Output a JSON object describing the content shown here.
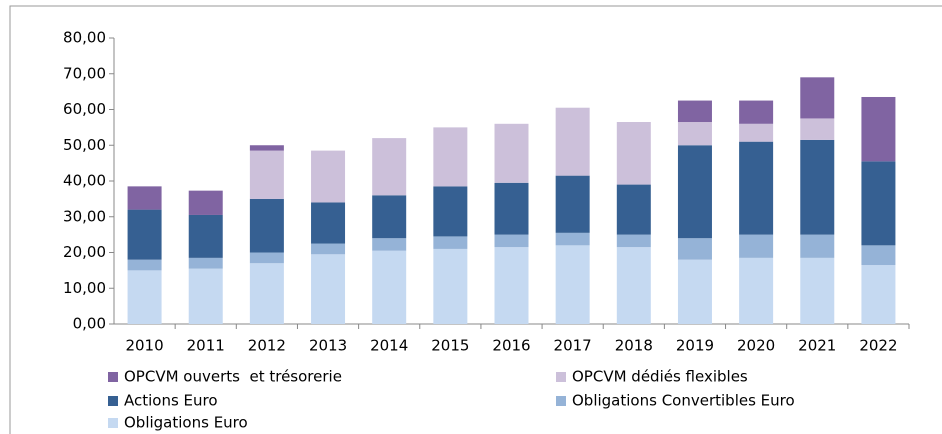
{
  "chart_data": {
    "type": "stacked_bar",
    "categories": [
      "2010",
      "2011",
      "2012",
      "2013",
      "2014",
      "2015",
      "2016",
      "2017",
      "2018",
      "2019",
      "2020",
      "2021",
      "2022"
    ],
    "series": [
      {
        "name": "Obligations Euro",
        "color": "#c5d9f1",
        "values": [
          15,
          15.5,
          17,
          19.5,
          20.5,
          21,
          21.5,
          22,
          21.5,
          18,
          18.5,
          18.5,
          16.5
        ]
      },
      {
        "name": "Obligations Convertibles Euro",
        "color": "#95b3d7",
        "values": [
          3,
          3,
          3,
          3,
          3.5,
          3.5,
          3.5,
          3.5,
          3.5,
          6,
          6.5,
          6.5,
          5.5
        ]
      },
      {
        "name": "Actions Euro",
        "color": "#366092",
        "values": [
          14,
          12,
          15,
          11.5,
          12,
          14,
          14.5,
          16,
          14,
          26,
          26,
          26.5,
          23.5
        ]
      },
      {
        "name": "OPCVM dédiés flexibles",
        "color": "#ccc0da",
        "values": [
          0,
          0,
          13.5,
          14.5,
          16,
          16.5,
          16.5,
          19,
          17.5,
          6.5,
          5,
          6,
          0
        ]
      },
      {
        "name": "OPCVM ouverts  et trésorerie",
        "color": "#8064a2",
        "values": [
          6.5,
          6.8,
          1.5,
          0,
          0,
          0,
          0,
          0,
          0,
          6,
          6.5,
          11.5,
          18
        ]
      }
    ],
    "ylim": [
      0,
      80
    ],
    "yticks": [
      {
        "value": 0,
        "label": "0,00"
      },
      {
        "value": 10,
        "label": "10,00"
      },
      {
        "value": 20,
        "label": "20,00"
      },
      {
        "value": 30,
        "label": "30,00"
      },
      {
        "value": 40,
        "label": "40,00"
      },
      {
        "value": 50,
        "label": "50,00"
      },
      {
        "value": 60,
        "label": "60,00"
      },
      {
        "value": 70,
        "label": "70,00"
      },
      {
        "value": 80,
        "label": "80,00"
      }
    ]
  }
}
